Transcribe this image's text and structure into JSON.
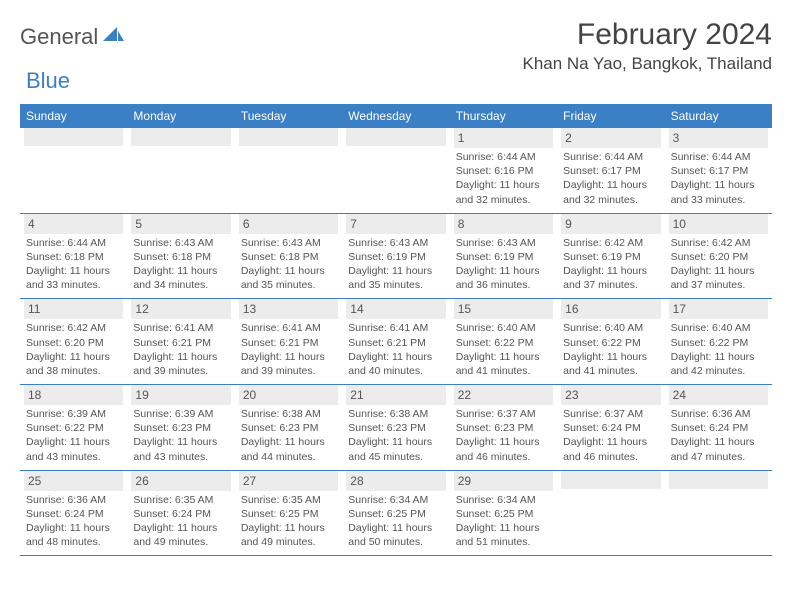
{
  "brand": {
    "text_gray": "General",
    "text_blue": "Blue"
  },
  "title": "February 2024",
  "location": "Khan Na Yao, Bangkok, Thailand",
  "colors": {
    "header_bg": "#3b7fc4",
    "header_text": "#ffffff",
    "daynum_bg": "#ececec",
    "border": "#3b7fc4",
    "body_text": "#555555"
  },
  "day_names": [
    "Sunday",
    "Monday",
    "Tuesday",
    "Wednesday",
    "Thursday",
    "Friday",
    "Saturday"
  ],
  "weeks": [
    [
      null,
      null,
      null,
      null,
      {
        "n": "1",
        "sr": "Sunrise: 6:44 AM",
        "ss": "Sunset: 6:16 PM",
        "d1": "Daylight: 11 hours",
        "d2": "and 32 minutes."
      },
      {
        "n": "2",
        "sr": "Sunrise: 6:44 AM",
        "ss": "Sunset: 6:17 PM",
        "d1": "Daylight: 11 hours",
        "d2": "and 32 minutes."
      },
      {
        "n": "3",
        "sr": "Sunrise: 6:44 AM",
        "ss": "Sunset: 6:17 PM",
        "d1": "Daylight: 11 hours",
        "d2": "and 33 minutes."
      }
    ],
    [
      {
        "n": "4",
        "sr": "Sunrise: 6:44 AM",
        "ss": "Sunset: 6:18 PM",
        "d1": "Daylight: 11 hours",
        "d2": "and 33 minutes."
      },
      {
        "n": "5",
        "sr": "Sunrise: 6:43 AM",
        "ss": "Sunset: 6:18 PM",
        "d1": "Daylight: 11 hours",
        "d2": "and 34 minutes."
      },
      {
        "n": "6",
        "sr": "Sunrise: 6:43 AM",
        "ss": "Sunset: 6:18 PM",
        "d1": "Daylight: 11 hours",
        "d2": "and 35 minutes."
      },
      {
        "n": "7",
        "sr": "Sunrise: 6:43 AM",
        "ss": "Sunset: 6:19 PM",
        "d1": "Daylight: 11 hours",
        "d2": "and 35 minutes."
      },
      {
        "n": "8",
        "sr": "Sunrise: 6:43 AM",
        "ss": "Sunset: 6:19 PM",
        "d1": "Daylight: 11 hours",
        "d2": "and 36 minutes."
      },
      {
        "n": "9",
        "sr": "Sunrise: 6:42 AM",
        "ss": "Sunset: 6:19 PM",
        "d1": "Daylight: 11 hours",
        "d2": "and 37 minutes."
      },
      {
        "n": "10",
        "sr": "Sunrise: 6:42 AM",
        "ss": "Sunset: 6:20 PM",
        "d1": "Daylight: 11 hours",
        "d2": "and 37 minutes."
      }
    ],
    [
      {
        "n": "11",
        "sr": "Sunrise: 6:42 AM",
        "ss": "Sunset: 6:20 PM",
        "d1": "Daylight: 11 hours",
        "d2": "and 38 minutes."
      },
      {
        "n": "12",
        "sr": "Sunrise: 6:41 AM",
        "ss": "Sunset: 6:21 PM",
        "d1": "Daylight: 11 hours",
        "d2": "and 39 minutes."
      },
      {
        "n": "13",
        "sr": "Sunrise: 6:41 AM",
        "ss": "Sunset: 6:21 PM",
        "d1": "Daylight: 11 hours",
        "d2": "and 39 minutes."
      },
      {
        "n": "14",
        "sr": "Sunrise: 6:41 AM",
        "ss": "Sunset: 6:21 PM",
        "d1": "Daylight: 11 hours",
        "d2": "and 40 minutes."
      },
      {
        "n": "15",
        "sr": "Sunrise: 6:40 AM",
        "ss": "Sunset: 6:22 PM",
        "d1": "Daylight: 11 hours",
        "d2": "and 41 minutes."
      },
      {
        "n": "16",
        "sr": "Sunrise: 6:40 AM",
        "ss": "Sunset: 6:22 PM",
        "d1": "Daylight: 11 hours",
        "d2": "and 41 minutes."
      },
      {
        "n": "17",
        "sr": "Sunrise: 6:40 AM",
        "ss": "Sunset: 6:22 PM",
        "d1": "Daylight: 11 hours",
        "d2": "and 42 minutes."
      }
    ],
    [
      {
        "n": "18",
        "sr": "Sunrise: 6:39 AM",
        "ss": "Sunset: 6:22 PM",
        "d1": "Daylight: 11 hours",
        "d2": "and 43 minutes."
      },
      {
        "n": "19",
        "sr": "Sunrise: 6:39 AM",
        "ss": "Sunset: 6:23 PM",
        "d1": "Daylight: 11 hours",
        "d2": "and 43 minutes."
      },
      {
        "n": "20",
        "sr": "Sunrise: 6:38 AM",
        "ss": "Sunset: 6:23 PM",
        "d1": "Daylight: 11 hours",
        "d2": "and 44 minutes."
      },
      {
        "n": "21",
        "sr": "Sunrise: 6:38 AM",
        "ss": "Sunset: 6:23 PM",
        "d1": "Daylight: 11 hours",
        "d2": "and 45 minutes."
      },
      {
        "n": "22",
        "sr": "Sunrise: 6:37 AM",
        "ss": "Sunset: 6:23 PM",
        "d1": "Daylight: 11 hours",
        "d2": "and 46 minutes."
      },
      {
        "n": "23",
        "sr": "Sunrise: 6:37 AM",
        "ss": "Sunset: 6:24 PM",
        "d1": "Daylight: 11 hours",
        "d2": "and 46 minutes."
      },
      {
        "n": "24",
        "sr": "Sunrise: 6:36 AM",
        "ss": "Sunset: 6:24 PM",
        "d1": "Daylight: 11 hours",
        "d2": "and 47 minutes."
      }
    ],
    [
      {
        "n": "25",
        "sr": "Sunrise: 6:36 AM",
        "ss": "Sunset: 6:24 PM",
        "d1": "Daylight: 11 hours",
        "d2": "and 48 minutes."
      },
      {
        "n": "26",
        "sr": "Sunrise: 6:35 AM",
        "ss": "Sunset: 6:24 PM",
        "d1": "Daylight: 11 hours",
        "d2": "and 49 minutes."
      },
      {
        "n": "27",
        "sr": "Sunrise: 6:35 AM",
        "ss": "Sunset: 6:25 PM",
        "d1": "Daylight: 11 hours",
        "d2": "and 49 minutes."
      },
      {
        "n": "28",
        "sr": "Sunrise: 6:34 AM",
        "ss": "Sunset: 6:25 PM",
        "d1": "Daylight: 11 hours",
        "d2": "and 50 minutes."
      },
      {
        "n": "29",
        "sr": "Sunrise: 6:34 AM",
        "ss": "Sunset: 6:25 PM",
        "d1": "Daylight: 11 hours",
        "d2": "and 51 minutes."
      },
      null,
      null
    ]
  ]
}
